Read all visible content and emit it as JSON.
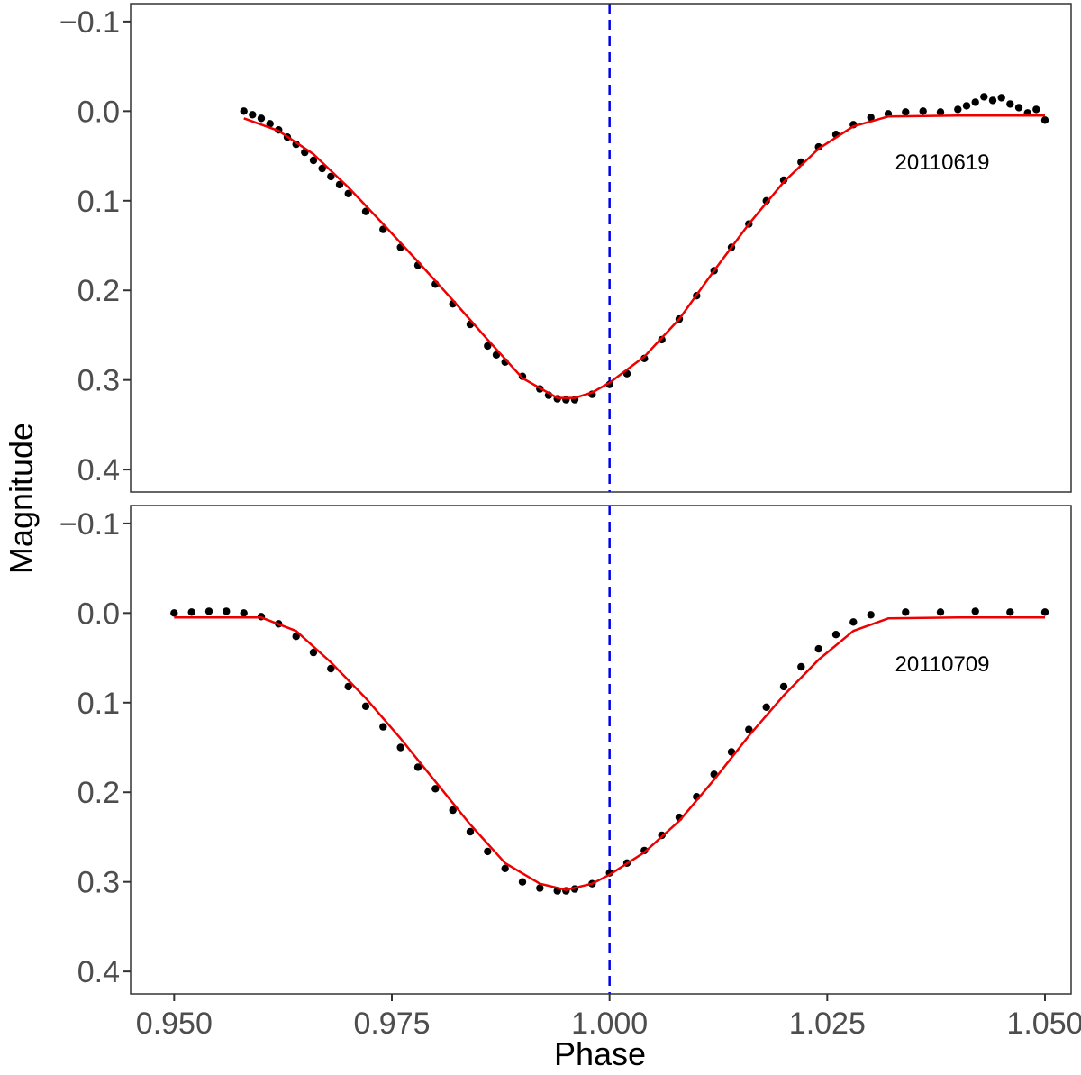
{
  "chart_data": {
    "type": "scatter",
    "xlabel": "Phase",
    "ylabel": "Magnitude",
    "xlim": [
      0.945,
      1.053
    ],
    "x_ticks": [
      0.95,
      0.975,
      1.0,
      1.025,
      1.05
    ],
    "x_tick_labels": [
      "0.950",
      "0.975",
      "1.000",
      "1.025",
      "1.050"
    ],
    "reference_line": {
      "x": 1.0,
      "color": "#0000ee",
      "style": "dashed"
    },
    "colors": {
      "points": "#000000",
      "fit": "#ee0000",
      "reference": "#0000ee"
    },
    "panels": [
      {
        "label": "20110619",
        "ylim": [
          -0.12,
          0.425
        ],
        "y_reversed": true,
        "y_ticks": [
          -0.1,
          0.0,
          0.1,
          0.2,
          0.3,
          0.4
        ],
        "y_tick_labels": [
          "−0.1",
          "0.0",
          "0.1",
          "0.2",
          "0.3",
          "0.4"
        ],
        "series": [
          {
            "kind": "points",
            "x": [
              0.958,
              0.959,
              0.96,
              0.961,
              0.962,
              0.963,
              0.964,
              0.965,
              0.966,
              0.967,
              0.968,
              0.969,
              0.97,
              0.972,
              0.974,
              0.976,
              0.978,
              0.98,
              0.982,
              0.984,
              0.986,
              0.987,
              0.988,
              0.99,
              0.992,
              0.993,
              0.994,
              0.995,
              0.996,
              0.998,
              1.0,
              1.002,
              1.004,
              1.006,
              1.008,
              1.01,
              1.012,
              1.014,
              1.016,
              1.018,
              1.02,
              1.022,
              1.024,
              1.026,
              1.028,
              1.03,
              1.032,
              1.034,
              1.036,
              1.038,
              1.04,
              1.041,
              1.042,
              1.043,
              1.044,
              1.045,
              1.046,
              1.047,
              1.048,
              1.049,
              1.05
            ],
            "y": [
              0.0,
              0.004,
              0.008,
              0.014,
              0.021,
              0.029,
              0.037,
              0.046,
              0.055,
              0.064,
              0.073,
              0.082,
              0.092,
              0.112,
              0.132,
              0.152,
              0.172,
              0.193,
              0.215,
              0.238,
              0.262,
              0.272,
              0.28,
              0.296,
              0.31,
              0.317,
              0.321,
              0.322,
              0.322,
              0.316,
              0.305,
              0.293,
              0.276,
              0.255,
              0.232,
              0.206,
              0.178,
              0.152,
              0.126,
              0.1,
              0.077,
              0.057,
              0.04,
              0.026,
              0.015,
              0.007,
              0.003,
              0.001,
              0.0,
              0.001,
              -0.002,
              -0.006,
              -0.01,
              -0.016,
              -0.012,
              -0.015,
              -0.008,
              -0.004,
              0.002,
              -0.002,
              0.01
            ]
          },
          {
            "kind": "fit",
            "x": [
              0.958,
              0.962,
              0.966,
              0.97,
              0.974,
              0.978,
              0.982,
              0.986,
              0.99,
              0.994,
              0.996,
              0.998,
              1.0,
              1.004,
              1.008,
              1.012,
              1.016,
              1.02,
              1.024,
              1.028,
              1.032,
              1.04,
              1.05
            ],
            "y": [
              0.008,
              0.022,
              0.048,
              0.085,
              0.126,
              0.168,
              0.211,
              0.255,
              0.298,
              0.32,
              0.32,
              0.314,
              0.303,
              0.274,
              0.232,
              0.178,
              0.126,
              0.079,
              0.042,
              0.017,
              0.006,
              0.005,
              0.005
            ]
          }
        ]
      },
      {
        "label": "20110709",
        "ylim": [
          -0.12,
          0.425
        ],
        "y_reversed": true,
        "y_ticks": [
          -0.1,
          0.0,
          0.1,
          0.2,
          0.3,
          0.4
        ],
        "y_tick_labels": [
          "−0.1",
          "0.0",
          "0.1",
          "0.2",
          "0.3",
          "0.4"
        ],
        "series": [
          {
            "kind": "points",
            "x": [
              0.95,
              0.952,
              0.954,
              0.956,
              0.958,
              0.96,
              0.962,
              0.964,
              0.966,
              0.968,
              0.97,
              0.972,
              0.974,
              0.976,
              0.978,
              0.98,
              0.982,
              0.984,
              0.986,
              0.988,
              0.99,
              0.992,
              0.994,
              0.995,
              0.996,
              0.998,
              1.0,
              1.002,
              1.004,
              1.006,
              1.008,
              1.01,
              1.012,
              1.014,
              1.016,
              1.018,
              1.02,
              1.022,
              1.024,
              1.026,
              1.028,
              1.03,
              1.034,
              1.038,
              1.042,
              1.046,
              1.05
            ],
            "y": [
              0.0,
              -0.001,
              -0.002,
              -0.002,
              0.0,
              0.004,
              0.012,
              0.026,
              0.044,
              0.062,
              0.082,
              0.104,
              0.127,
              0.15,
              0.172,
              0.196,
              0.22,
              0.244,
              0.266,
              0.285,
              0.3,
              0.307,
              0.31,
              0.31,
              0.308,
              0.302,
              0.29,
              0.279,
              0.265,
              0.248,
              0.228,
              0.205,
              0.18,
              0.155,
              0.13,
              0.105,
              0.082,
              0.06,
              0.04,
              0.024,
              0.01,
              0.002,
              -0.001,
              -0.001,
              -0.002,
              -0.001,
              -0.001
            ]
          },
          {
            "kind": "fit",
            "x": [
              0.95,
              0.955,
              0.96,
              0.964,
              0.968,
              0.972,
              0.976,
              0.98,
              0.984,
              0.988,
              0.992,
              0.995,
              0.998,
              1.0,
              1.004,
              1.008,
              1.012,
              1.016,
              1.02,
              1.024,
              1.028,
              1.032,
              1.04,
              1.05
            ],
            "y": [
              0.005,
              0.005,
              0.005,
              0.02,
              0.055,
              0.095,
              0.14,
              0.188,
              0.236,
              0.279,
              0.302,
              0.309,
              0.302,
              0.292,
              0.267,
              0.232,
              0.186,
              0.137,
              0.092,
              0.052,
              0.02,
              0.006,
              0.005,
              0.005
            ]
          }
        ]
      }
    ]
  }
}
